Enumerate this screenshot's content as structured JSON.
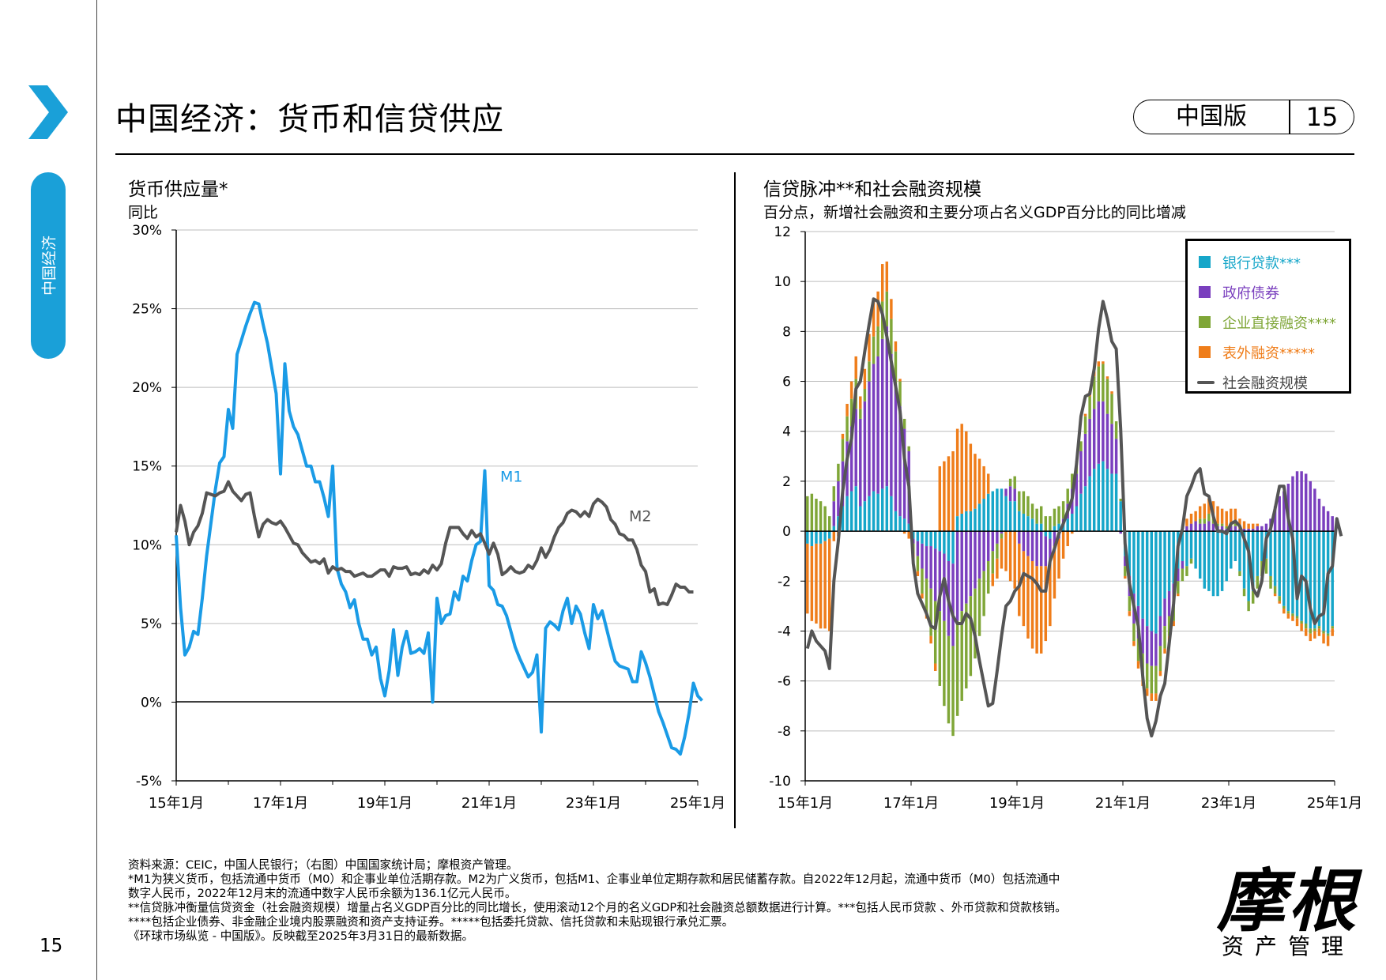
{
  "sidebar": {
    "tab_label": "中国经济",
    "page_number": "15"
  },
  "header": {
    "title": "中国经济：货币和信贷供应",
    "edition": "中国版",
    "page": "15"
  },
  "colors": {
    "accent": "#1aa0d8",
    "m1": "#1a9be6",
    "m2": "#555555",
    "bank_loans": "#16a6c9",
    "gov_bonds": "#7a3fbe",
    "corp_financing": "#7fa637",
    "offbalance": "#ef7d1a",
    "tsf": "#555555"
  },
  "chart_data": [
    {
      "type": "line",
      "title": "货币供应量*",
      "subtitle": "同比",
      "x_ticks": [
        "15年1月",
        "17年1月",
        "19年1月",
        "21年1月",
        "23年1月",
        "25年1月"
      ],
      "y_ticks": [
        "30%",
        "25%",
        "20%",
        "15%",
        "10%",
        "5%",
        "0%",
        "-5%"
      ],
      "ylim": [
        -5,
        30
      ],
      "grid": true,
      "x_start": "2015-01",
      "series": [
        {
          "name": "M1",
          "values": [
            10.6,
            6.0,
            3.0,
            3.5,
            4.5,
            4.3,
            6.6,
            9.3,
            11.4,
            13.5,
            15.2,
            15.6,
            18.6,
            17.4,
            22.1,
            23.0,
            23.9,
            24.7,
            25.4,
            25.3,
            24.0,
            22.8,
            21.2,
            19.6,
            14.5,
            21.5,
            18.5,
            17.5,
            17.0,
            16.0,
            15.0,
            15.0,
            14.0,
            14.0,
            13.0,
            11.8,
            15.0,
            8.5,
            7.5,
            7.0,
            6.0,
            6.5,
            5.0,
            4.0,
            4.0,
            3.0,
            3.5,
            1.5,
            0.4,
            2.0,
            4.6,
            1.7,
            3.5,
            4.5,
            3.1,
            3.2,
            3.4,
            3.1,
            4.4,
            0.0,
            6.6,
            5.0,
            5.5,
            5.6,
            7.0,
            6.5,
            8.0,
            7.7,
            9.0,
            10.0,
            10.2,
            14.7,
            7.4,
            7.1,
            6.2,
            6.1,
            5.5,
            4.5,
            3.5,
            2.8,
            2.2,
            1.6,
            1.9,
            3.0,
            -1.9,
            4.7,
            5.1,
            4.9,
            4.6,
            5.8,
            6.6,
            5.0,
            6.1,
            5.6,
            4.4,
            3.4,
            6.2,
            5.3,
            5.8,
            4.7,
            3.6,
            2.6,
            2.3,
            2.2,
            2.1,
            1.3,
            1.3,
            3.2,
            2.5,
            1.6,
            0.5,
            -0.6,
            -1.3,
            -2.1,
            -2.9,
            -3.0,
            -3.3,
            -2.2,
            -0.7,
            1.2,
            0.4,
            0.1
          ]
        },
        {
          "name": "M2",
          "values": [
            10.8,
            12.5,
            11.5,
            10.0,
            10.8,
            11.2,
            12.0,
            13.3,
            13.2,
            13.1,
            13.3,
            13.4,
            14.0,
            13.4,
            13.1,
            12.8,
            13.2,
            13.3,
            11.8,
            10.5,
            11.3,
            11.6,
            11.4,
            11.3,
            11.5,
            11.1,
            10.6,
            10.1,
            10.0,
            9.5,
            9.2,
            8.9,
            9.0,
            8.8,
            9.1,
            8.2,
            8.6,
            8.4,
            8.5,
            8.3,
            8.3,
            8.0,
            8.1,
            8.2,
            8.0,
            8.0,
            8.2,
            8.4,
            8.4,
            8.0,
            8.6,
            8.5,
            8.5,
            8.6,
            8.1,
            8.2,
            8.1,
            8.4,
            8.2,
            8.7,
            8.4,
            8.8,
            10.1,
            11.1,
            11.1,
            11.1,
            10.7,
            10.4,
            10.9,
            10.5,
            10.7,
            10.1,
            9.4,
            10.1,
            9.4,
            8.1,
            8.3,
            8.6,
            8.3,
            8.2,
            8.3,
            8.7,
            8.5,
            9.0,
            9.8,
            9.2,
            9.7,
            10.5,
            11.1,
            11.4,
            12.0,
            12.2,
            12.1,
            11.8,
            12.1,
            11.8,
            12.6,
            12.9,
            12.7,
            12.4,
            11.6,
            11.3,
            10.7,
            10.6,
            10.3,
            10.3,
            9.7,
            8.7,
            8.3,
            7.0,
            7.2,
            6.2,
            6.3,
            6.2,
            6.8,
            7.5,
            7.3,
            7.3,
            7.0,
            7.0
          ]
        }
      ],
      "annotations": [
        "M1",
        "M2"
      ]
    },
    {
      "type": "bar",
      "title": "信贷脉冲**和社会融资规模",
      "subtitle": "百分点，新增社会融资和主要分项占名义GDP百分比的同比增减",
      "x_ticks": [
        "15年1月",
        "17年1月",
        "19年1月",
        "21年1月",
        "23年1月",
        "25年1月"
      ],
      "y_ticks": [
        "12",
        "10",
        "8",
        "6",
        "4",
        "2",
        "0",
        "-2",
        "-4",
        "-6",
        "-8",
        "-10"
      ],
      "ylim": [
        -10,
        12
      ],
      "grid": true,
      "x_start": "2015-01",
      "legend_position": "top-right",
      "series": [
        {
          "name": "银行贷款***",
          "values": [
            -0.5,
            -0.6,
            -0.5,
            -0.5,
            -0.4,
            -0.3,
            0.2,
            0.6,
            1.0,
            1.4,
            1.6,
            1.8,
            1.0,
            1.2,
            1.4,
            1.6,
            1.5,
            1.7,
            1.8,
            1.4,
            0.8,
            0.6,
            0.5,
            0.3,
            -0.3,
            -0.4,
            -0.5,
            -0.6,
            -0.6,
            -0.7,
            -0.8,
            -0.9,
            -1.2,
            -1.3,
            0.6,
            0.7,
            0.8,
            0.8,
            0.9,
            1.1,
            1.3,
            1.5,
            1.6,
            1.7,
            1.7,
            1.4,
            1.2,
            1.2,
            0.8,
            0.7,
            0.6,
            0.5,
            0.3,
            0.3,
            -0.2,
            -0.3,
            0.2,
            0.3,
            0.3,
            0.5,
            0.7,
            1.0,
            1.5,
            1.8,
            2.2,
            2.5,
            2.7,
            2.8,
            2.5,
            2.3,
            2.3,
            1.2,
            -1.0,
            -1.8,
            -2.5,
            -3.0,
            -3.5,
            -3.8,
            -4.0,
            -4.1,
            -3.4,
            -2.7,
            -2.4,
            -2.1,
            -1.5,
            -1.2,
            -1.4,
            -1.1,
            -1.5,
            -1.9,
            -2.3,
            -2.4,
            -2.6,
            -2.6,
            -2.4,
            -2.0,
            -1.5,
            -1.2,
            -1.6,
            -2.3,
            -2.8,
            -2.4,
            -1.8,
            -1.2,
            -1.1,
            -1.8,
            -2.2,
            -2.6,
            -3.0,
            -3.2,
            -3.3,
            -3.4,
            -3.6,
            -3.7,
            -3.9,
            -3.9,
            -3.8,
            -4.0,
            -4.1,
            -3.8
          ]
        },
        {
          "name": "政府债券",
          "values": [
            0.0,
            0.0,
            0.0,
            0.0,
            0.0,
            0.0,
            1.0,
            1.4,
            1.8,
            2.2,
            2.6,
            3.1,
            3.5,
            4.0,
            4.6,
            5.1,
            5.5,
            6.0,
            6.4,
            5.7,
            5.1,
            4.4,
            3.6,
            2.9,
            -0.2,
            -0.6,
            -1.0,
            -1.3,
            -1.7,
            -2.1,
            -2.4,
            -2.7,
            -3.0,
            -3.3,
            -3.6,
            -3.2,
            -2.9,
            -2.6,
            -2.3,
            -1.9,
            -1.6,
            -1.2,
            -0.8,
            -0.5,
            -0.1,
            0.3,
            0.6,
            0.5,
            -0.5,
            -0.8,
            -1.0,
            -1.2,
            -1.4,
            -1.4,
            -1.2,
            -0.9,
            -0.6,
            -0.3,
            0.2,
            0.6,
            1.0,
            1.3,
            1.7,
            2.1,
            2.3,
            2.4,
            2.5,
            2.4,
            2.2,
            2.0,
            1.4,
            -0.1,
            -0.4,
            -0.8,
            -1.2,
            -1.3,
            -1.4,
            -1.5,
            -1.4,
            -1.3,
            -1.2,
            -1.1,
            -1.0,
            -0.9,
            -0.5,
            -0.3,
            0.2,
            0.3,
            0.4,
            0.3,
            0.3,
            0.4,
            0.3,
            0.2,
            0.2,
            0.1,
            0.2,
            0.2,
            0.1,
            0.1,
            0.1,
            0.1,
            0.2,
            0.2,
            0.3,
            0.5,
            1.0,
            1.4,
            1.6,
            1.9,
            2.2,
            2.4,
            2.4,
            2.3,
            2.0,
            1.7,
            1.3,
            1.0,
            0.8,
            0.6,
            0.4,
            2.2
          ]
        },
        {
          "name": "企业直接融资****",
          "values": [
            1.4,
            1.5,
            1.3,
            1.2,
            1.0,
            0.6,
            0.6,
            0.7,
            0.9,
            1.0,
            1.1,
            1.2,
            0.4,
            0.5,
            0.8,
            1.1,
            1.2,
            1.5,
            1.4,
            1.4,
            1.3,
            1.0,
            0.4,
            0.2,
            -0.4,
            -0.6,
            -1.0,
            -1.4,
            -1.9,
            -2.5,
            -3.0,
            -3.4,
            -3.5,
            -3.6,
            -3.8,
            -3.6,
            -3.4,
            -3.2,
            -2.8,
            -2.3,
            -1.8,
            -1.3,
            -0.9,
            -0.6,
            -0.2,
            0.0,
            0.3,
            0.5,
            0.8,
            0.9,
            0.8,
            0.6,
            0.6,
            0.7,
            0.6,
            0.6,
            0.7,
            0.7,
            0.7,
            0.6,
            0.6,
            0.5,
            0.4,
            0.7,
            0.9,
            1.3,
            1.4,
            1.5,
            1.4,
            1.2,
            0.7,
            0.1,
            -0.4,
            -0.6,
            -0.7,
            -0.9,
            -1.0,
            -1.0,
            -1.1,
            -1.1,
            -1.0,
            -0.9,
            -0.8,
            -0.6,
            -0.5,
            -0.5,
            -0.4,
            -0.2,
            0.0,
            0.2,
            0.2,
            0.3,
            0.2,
            0.1,
            0.1,
            0.1,
            0.1,
            0.1,
            -0.2,
            -0.3,
            -0.4,
            -0.5,
            -0.5,
            -0.6,
            -0.6,
            -0.5,
            -0.3,
            -0.2,
            -0.1,
            -0.1,
            -0.1,
            -0.1,
            -0.1,
            -0.2,
            -0.2,
            -0.1,
            -0.1,
            -0.1,
            -0.1,
            -0.1,
            0.0,
            -0.1
          ]
        },
        {
          "name": "表外融资*****",
          "values": [
            -2.8,
            -3.0,
            -3.2,
            -3.4,
            -3.5,
            -3.7,
            -0.4,
            -0.2,
            0.2,
            0.5,
            0.7,
            0.9,
            0.5,
            0.8,
            1.1,
            1.4,
            1.4,
            1.5,
            1.2,
            0.8,
            0.4,
            0.1,
            -0.1,
            -0.3,
            -0.2,
            -0.2,
            -0.2,
            -0.2,
            -0.3,
            -0.3,
            2.6,
            2.8,
            3.0,
            3.2,
            3.5,
            3.6,
            3.2,
            2.7,
            2.2,
            1.8,
            1.3,
            0.8,
            -0.5,
            -0.8,
            -1.2,
            -1.6,
            -2.0,
            -2.3,
            -2.9,
            -3.0,
            -3.3,
            -3.5,
            -3.5,
            -3.5,
            -3.0,
            -2.6,
            -2.1,
            -1.6,
            -1.1,
            -0.6,
            -0.1,
            0.0,
            0.0,
            0.1,
            0.2,
            0.2,
            0.2,
            0.1,
            0.1,
            0.1,
            0.0,
            0.0,
            -0.1,
            -0.2,
            -0.2,
            -0.3,
            -0.3,
            -0.3,
            -0.3,
            -0.3,
            -0.2,
            -0.2,
            -0.2,
            -0.2,
            -0.1,
            0.0,
            0.3,
            0.4,
            0.4,
            0.5,
            0.6,
            0.6,
            0.7,
            0.7,
            0.6,
            0.6,
            0.6,
            0.6,
            0.4,
            0.3,
            0.2,
            0.2,
            0.1,
            0.0,
            0.0,
            0.0,
            -0.1,
            -0.1,
            -0.2,
            -0.2,
            -0.2,
            -0.3,
            -0.3,
            -0.3,
            -0.3,
            -0.3,
            -0.3,
            -0.4,
            -0.4,
            -0.3
          ]
        },
        {
          "name": "社会融资规模",
          "values": [
            -4.7,
            -4.0,
            -4.4,
            -4.6,
            -4.8,
            -5.5,
            -2.0,
            -0.4,
            1.6,
            2.9,
            3.7,
            5.7,
            6.0,
            7.2,
            8.3,
            9.3,
            9.2,
            8.7,
            7.8,
            6.8,
            5.8,
            4.8,
            2.9,
            1.8,
            -1.3,
            -2.5,
            -2.9,
            -3.3,
            -3.8,
            -3.9,
            -2.6,
            -1.9,
            -2.8,
            -3.4,
            -3.7,
            -3.7,
            -3.3,
            -3.5,
            -4.2,
            -5.2,
            -6.1,
            -7.0,
            -6.9,
            -5.6,
            -4.2,
            -3.0,
            -2.8,
            -2.4,
            -2.2,
            -1.7,
            -1.8,
            -1.9,
            -2.1,
            -2.4,
            -2.4,
            -1.2,
            -0.7,
            -0.1,
            0.3,
            0.8,
            1.3,
            2.7,
            4.6,
            5.4,
            5.5,
            6.5,
            8.1,
            9.2,
            8.5,
            7.6,
            7.3,
            4.1,
            -0.5,
            -2.1,
            -3.0,
            -3.8,
            -5.8,
            -7.5,
            -8.2,
            -7.6,
            -6.6,
            -6.1,
            -4.5,
            -2.9,
            -0.6,
            0.1,
            1.4,
            1.8,
            2.3,
            2.5,
            1.5,
            1.4,
            0.6,
            0.0,
            0.0,
            -0.1,
            0.3,
            0.4,
            0.2,
            -0.3,
            -0.8,
            -2.3,
            -2.6,
            -2.0,
            -0.3,
            0.1,
            0.9,
            1.8,
            1.8,
            0.5,
            -0.3,
            -2.7,
            -1.8,
            -2.0,
            -3.1,
            -3.7,
            -3.4,
            -3.3,
            -1.7,
            -1.4,
            0.5,
            -0.2
          ]
        }
      ]
    }
  ],
  "footnotes": [
    "资料来源：CEIC，中国人民银行；（右图）中国国家统计局；摩根资产管理。",
    "*M1为狭义货币，包括流通中货币（M0）和企事业单位活期存款。M2为广义货币，包括M1、企事业单位定期存款和居民储蓄存款。自2022年12月起，流通中货币（M0）包括流通中",
    "数字人民币，2022年12月末的流通中数字人民币余额为136.1亿元人民币。",
    "**信贷脉冲衡量信贷资金（社会融资规模）增量占名义GDP百分比的同比增长，使用滚动12个月的名义GDP和社会融资总额数据进行计算。***包括人民币贷款 、外币贷款和贷款核销。",
    "****包括企业债券、非金融企业境内股票融资和资产支持证券。*****包括委托贷款、信托贷款和未贴现银行承兑汇票。",
    "《环球市场纵览 - 中国版》。反映截至2025年3月31日的最新数据。"
  ],
  "logo": {
    "name": "摩根",
    "subtitle": "资产管理"
  }
}
